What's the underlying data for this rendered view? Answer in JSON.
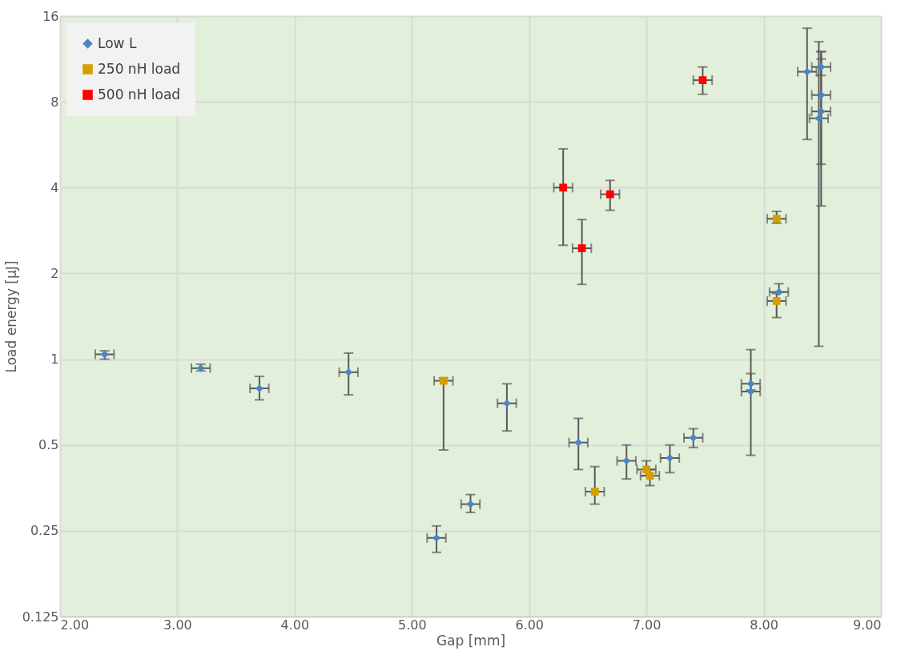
{
  "chart_data": {
    "type": "scatter",
    "xlabel": "Gap [mm]",
    "ylabel": "Load energy [µJ]",
    "xlim": [
      2,
      9
    ],
    "xticks": [
      {
        "value": 2,
        "label": "2.00"
      },
      {
        "value": 3,
        "label": "3.00"
      },
      {
        "value": 4,
        "label": "4.00"
      },
      {
        "value": 5,
        "label": "5.00"
      },
      {
        "value": 6,
        "label": "6.00"
      },
      {
        "value": 7,
        "label": "7.00"
      },
      {
        "value": 8,
        "label": "8.00"
      },
      {
        "value": 9,
        "label": "9.00"
      }
    ],
    "ylim": [
      0.125,
      16
    ],
    "yticks": [
      0.125,
      0.25,
      0.5,
      1,
      2,
      4,
      8,
      16
    ],
    "log": "y",
    "grid": true,
    "legend": "top left",
    "series": [
      {
        "name": "Low L",
        "color": "#4a86c5",
        "marker": "diamond",
        "x": [
          2.38,
          3.2,
          3.7,
          4.46,
          5.21,
          5.5,
          5.81,
          6.42,
          6.83,
          7.2,
          7.4,
          7.89,
          7.89,
          8.13,
          8.37,
          8.49,
          8.49,
          8.49,
          8.47
        ],
        "values": [
          1.04,
          0.93,
          0.79,
          0.9,
          0.236,
          0.31,
          0.7,
          0.51,
          0.44,
          0.45,
          0.53,
          0.82,
          0.77,
          1.72,
          10.2,
          10.6,
          8.45,
          7.4,
          7.0
        ],
        "errors": [
          [
            1.0,
            1.07
          ],
          [
            0.91,
            0.96
          ],
          [
            0.72,
            0.87
          ],
          [
            0.75,
            1.05
          ],
          [
            0.21,
            0.26
          ],
          [
            0.29,
            0.335
          ],
          [
            0.56,
            0.82
          ],
          [
            0.41,
            0.62
          ],
          [
            0.38,
            0.5
          ],
          [
            0.4,
            0.5
          ],
          [
            0.49,
            0.57
          ],
          [
            0.78,
            0.89
          ],
          [
            0.46,
            1.08
          ],
          [
            1.72,
            1.84
          ],
          [
            5.9,
            14.5
          ],
          [
            9.9,
            11.3
          ],
          [
            4.83,
            12.0
          ],
          [
            3.45,
            12.0
          ],
          [
            1.11,
            13.0
          ]
        ],
        "xerrors": [
          0.08,
          0.08,
          0.08,
          0.08,
          0.08,
          0.08,
          0.08,
          0.08,
          0.08,
          0.08,
          0.08,
          0.08,
          0.08,
          0.08,
          0.08,
          0.08,
          0.08,
          0.08,
          0.08
        ]
      },
      {
        "name": "250 nH load",
        "color": "#d4a000",
        "marker": "square",
        "x": [
          5.27,
          6.56,
          7.0,
          7.03,
          8.11,
          8.11
        ],
        "values": [
          0.84,
          0.343,
          0.41,
          0.39,
          3.11,
          1.6
        ],
        "errors": [
          [
            0.48,
            0.86
          ],
          [
            0.31,
            0.42
          ],
          [
            0.39,
            0.44
          ],
          [
            0.36,
            0.41
          ],
          [
            3.0,
            3.3
          ],
          [
            1.4,
            1.7
          ]
        ],
        "xerrors": [
          0.08,
          0.08,
          0.08,
          0.08,
          0.08,
          0.08
        ]
      },
      {
        "name": "500 nH load",
        "color": "#ff0000",
        "marker": "square",
        "x": [
          6.29,
          6.45,
          6.69,
          7.48
        ],
        "values": [
          4.0,
          2.45,
          3.79,
          9.53
        ],
        "errors": [
          [
            2.51,
            5.47
          ],
          [
            1.83,
            3.09
          ],
          [
            3.33,
            4.24
          ],
          [
            8.5,
            10.6
          ]
        ],
        "xerrors": [
          0.08,
          0.08,
          0.08,
          0.08
        ]
      }
    ]
  }
}
